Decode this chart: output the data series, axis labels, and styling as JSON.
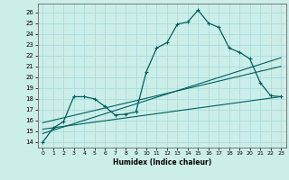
{
  "xlabel": "Humidex (Indice chaleur)",
  "background_color": "#cceee8",
  "grid_color": "#aadddd",
  "line_color": "#006060",
  "xlim": [
    -0.5,
    23.5
  ],
  "ylim": [
    13.5,
    26.8
  ],
  "xticks": [
    0,
    1,
    2,
    3,
    4,
    5,
    6,
    7,
    8,
    9,
    10,
    11,
    12,
    13,
    14,
    15,
    16,
    17,
    18,
    19,
    20,
    21,
    22,
    23
  ],
  "yticks": [
    14,
    15,
    16,
    17,
    18,
    19,
    20,
    21,
    22,
    23,
    24,
    25,
    26
  ],
  "main_x": [
    0,
    1,
    2,
    3,
    4,
    5,
    6,
    7,
    8,
    9,
    10,
    11,
    12,
    13,
    14,
    15,
    16,
    17,
    18,
    19,
    20,
    21,
    22,
    23
  ],
  "main_y": [
    14.0,
    15.3,
    15.9,
    18.2,
    18.2,
    18.0,
    17.3,
    16.5,
    16.6,
    16.8,
    20.5,
    22.7,
    23.2,
    24.9,
    25.1,
    26.2,
    25.0,
    24.6,
    22.7,
    22.3,
    21.7,
    19.5,
    18.3,
    18.2
  ],
  "line2_x": [
    0,
    23
  ],
  "line2_y": [
    14.8,
    21.8
  ],
  "line3_x": [
    0,
    23
  ],
  "line3_y": [
    15.2,
    18.2
  ],
  "line4_x": [
    0,
    23
  ],
  "line4_y": [
    15.8,
    21.0
  ]
}
